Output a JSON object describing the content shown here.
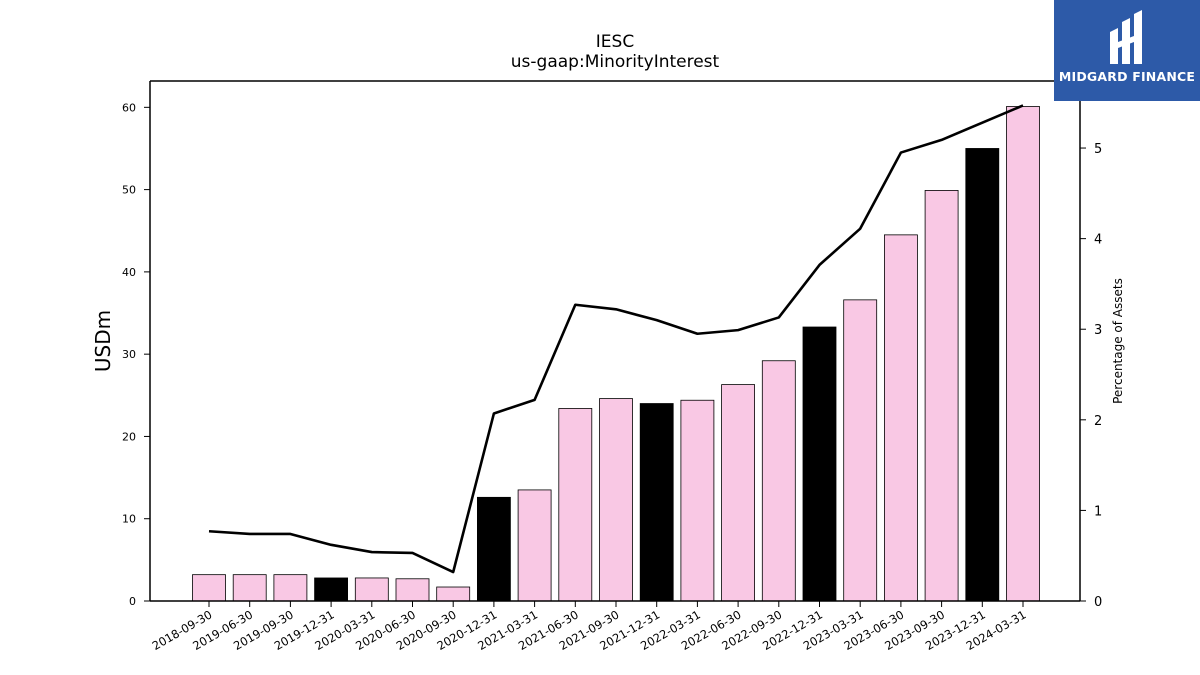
{
  "chart_data": {
    "type": "bar",
    "title": "IESC",
    "subtitle": "us-gaap:MinorityInterest",
    "ylabel": "USDm",
    "y2label": "Percentage of Assets",
    "ylim": [
      0,
      63.2
    ],
    "y2lim": [
      0,
      5.74
    ],
    "yticks": [
      0,
      10,
      20,
      30,
      40,
      50,
      60
    ],
    "y2ticks": [
      0,
      1,
      2,
      3,
      4,
      5
    ],
    "categories": [
      "2018-09-30",
      "2019-06-30",
      "2019-09-30",
      "2019-12-31",
      "2020-03-31",
      "2020-06-30",
      "2020-09-30",
      "2020-12-31",
      "2021-03-31",
      "2021-06-30",
      "2021-09-30",
      "2021-12-31",
      "2022-03-31",
      "2022-06-30",
      "2022-09-30",
      "2022-12-31",
      "2023-03-31",
      "2023-06-30",
      "2023-09-30",
      "2023-12-31",
      "2024-03-31"
    ],
    "series": [
      {
        "kind": "bar",
        "axis": "left",
        "values": [
          3.2,
          3.2,
          3.2,
          2.8,
          2.8,
          2.7,
          1.7,
          12.6,
          13.5,
          23.4,
          24.6,
          24.0,
          24.4,
          26.3,
          29.2,
          33.3,
          36.6,
          44.5,
          49.9,
          55.0,
          60.1
        ],
        "colors": [
          "#f9c8e4",
          "#f9c8e4",
          "#f9c8e4",
          "#000000",
          "#f9c8e4",
          "#f9c8e4",
          "#f9c8e4",
          "#000000",
          "#f9c8e4",
          "#f9c8e4",
          "#f9c8e4",
          "#000000",
          "#f9c8e4",
          "#f9c8e4",
          "#f9c8e4",
          "#000000",
          "#f9c8e4",
          "#f9c8e4",
          "#f9c8e4",
          "#000000",
          "#f9c8e4"
        ]
      },
      {
        "kind": "line",
        "axis": "right",
        "color": "#000000",
        "values": [
          0.77,
          0.74,
          0.74,
          0.62,
          0.54,
          0.53,
          0.32,
          2.07,
          2.22,
          3.27,
          3.22,
          3.1,
          2.95,
          2.99,
          3.13,
          3.71,
          4.11,
          4.95,
          5.09,
          5.28,
          5.47
        ]
      }
    ],
    "grid": false,
    "legend": "none"
  },
  "logo": {
    "text": "MIDGARD FINANCE"
  }
}
